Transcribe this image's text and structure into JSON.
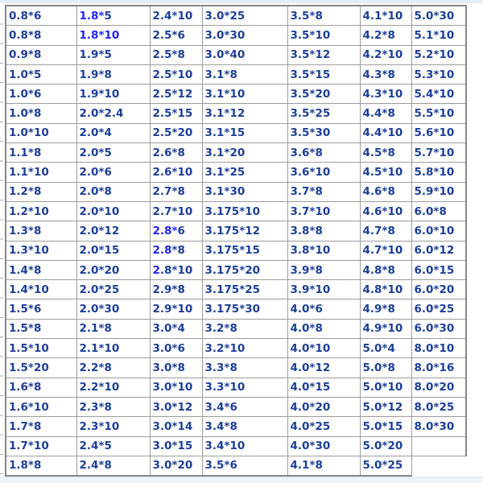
{
  "colors": {
    "text_navy": "#1d3e94",
    "text_bright": "#2323f2",
    "grid": "#9c9c9c",
    "outer_border": "#878787",
    "top_strip": "#e4ecf5",
    "bottom_strip": "#eef3f8"
  },
  "table": {
    "description": "size specification grid (diameter*length)",
    "rows": [
      [
        "0.8*6",
        "1.8*5",
        "2.4*10",
        "3.0*25",
        "3.5*8",
        "4.1*10",
        "5.0*30"
      ],
      [
        "0.8*8",
        "1.8*10",
        "2.5*6",
        "3.0*30",
        "3.5*10",
        "4.2*8",
        "5.1*10"
      ],
      [
        "0.9*8",
        "1.9*5",
        "2.5*8",
        "3.0*40",
        "3.5*12",
        "4.2*10",
        "5.2*10"
      ],
      [
        "1.0*5",
        "1.9*8",
        "2.5*10",
        "3.1*8",
        "3.5*15",
        "4.3*8",
        "5.3*10"
      ],
      [
        "1.0*6",
        "1.9*10",
        "2.5*12",
        "3.1*10",
        "3.5*20",
        "4.3*10",
        "5.4*10"
      ],
      [
        "1.0*8",
        "2.0*2.4",
        "2.5*15",
        "3.1*12",
        "3.5*25",
        "4.4*8",
        "5.5*10"
      ],
      [
        "1.0*10",
        "2.0*4",
        "2.5*20",
        "3.1*15",
        "3.5*30",
        "4.4*10",
        "5.6*10"
      ],
      [
        "1.1*8",
        "2.0*5",
        "2.6*8",
        "3.1*20",
        "3.6*8",
        "4.5*8",
        "5.7*10"
      ],
      [
        "1.1*10",
        "2.0*6",
        "2.6*10",
        "3.1*25",
        "3.6*10",
        "4.5*10",
        "5.8*10"
      ],
      [
        "1.2*8",
        "2.0*8",
        "2.7*8",
        "3.1*30",
        "3.7*8",
        "4.6*8",
        "5.9*10"
      ],
      [
        "1.2*10",
        "2.0*10",
        "2.7*10",
        "3.175*10",
        "3.7*10",
        "4.6*10",
        "6.0*8"
      ],
      [
        "1.3*8",
        "2.0*12",
        "2.8*6",
        "3.175*12",
        "3.8*8",
        "4.7*8",
        "6.0*10"
      ],
      [
        "1.3*10",
        "2.0*15",
        "2.8*8",
        "3.175*15",
        "3.8*10",
        "4.7*10",
        "6.0*12"
      ],
      [
        "1.4*8",
        "2.0*20",
        "2.8*10",
        "3.175*20",
        "3.9*8",
        "4.8*8",
        "6.0*15"
      ],
      [
        "1.4*10",
        "2.0*25",
        "2.9*8",
        "3.175*25",
        "3.9*10",
        "4.8*10",
        "6.0*20"
      ],
      [
        "1.5*6",
        "2.0*30",
        "2.9*10",
        "3.175*30",
        "4.0*6",
        "4.9*8",
        "6.0*25"
      ],
      [
        "1.5*8",
        "2.1*8",
        "3.0*4",
        "3.2*8",
        "4.0*8",
        "4.9*10",
        "6.0*30"
      ],
      [
        "1.5*10",
        "2.1*10",
        "3.0*6",
        "3.2*10",
        "4.0*10",
        "5.0*4",
        "8.0*10"
      ],
      [
        "1.5*20",
        "2.2*8",
        "3.0*8",
        "3.3*8",
        "4.0*12",
        "5.0*8",
        "8.0*16"
      ],
      [
        "1.6*8",
        "2.2*10",
        "3.0*10",
        "3.3*10",
        "4.0*15",
        "5.0*10",
        "8.0*20"
      ],
      [
        "1.6*10",
        "2.3*8",
        "3.0*12",
        "3.4*6",
        "4.0*20",
        "5.0*12",
        "8.0*25"
      ],
      [
        "1.7*8",
        "2.3*10",
        "3.0*14",
        "3.4*8",
        "4.0*25",
        "5.0*15",
        "8.0*30"
      ],
      [
        "1.7*10",
        "2.4*5",
        "3.0*15",
        "3.4*10",
        "4.0*30",
        "5.0*20",
        ""
      ],
      [
        "1.8*8",
        "2.4*8",
        "3.0*20",
        "3.5*6",
        "4.1*8",
        "5.0*25",
        null
      ]
    ],
    "bright_cells": [
      {
        "row": 0,
        "col": 1,
        "prefix": "1.8*"
      },
      {
        "row": 1,
        "col": 1,
        "prefix": "1.8*10"
      },
      {
        "row": 11,
        "col": 2,
        "prefix": "2.8*"
      },
      {
        "row": 12,
        "col": 2,
        "prefix": "2.8"
      },
      {
        "row": 13,
        "col": 2,
        "prefix": "2"
      }
    ]
  }
}
